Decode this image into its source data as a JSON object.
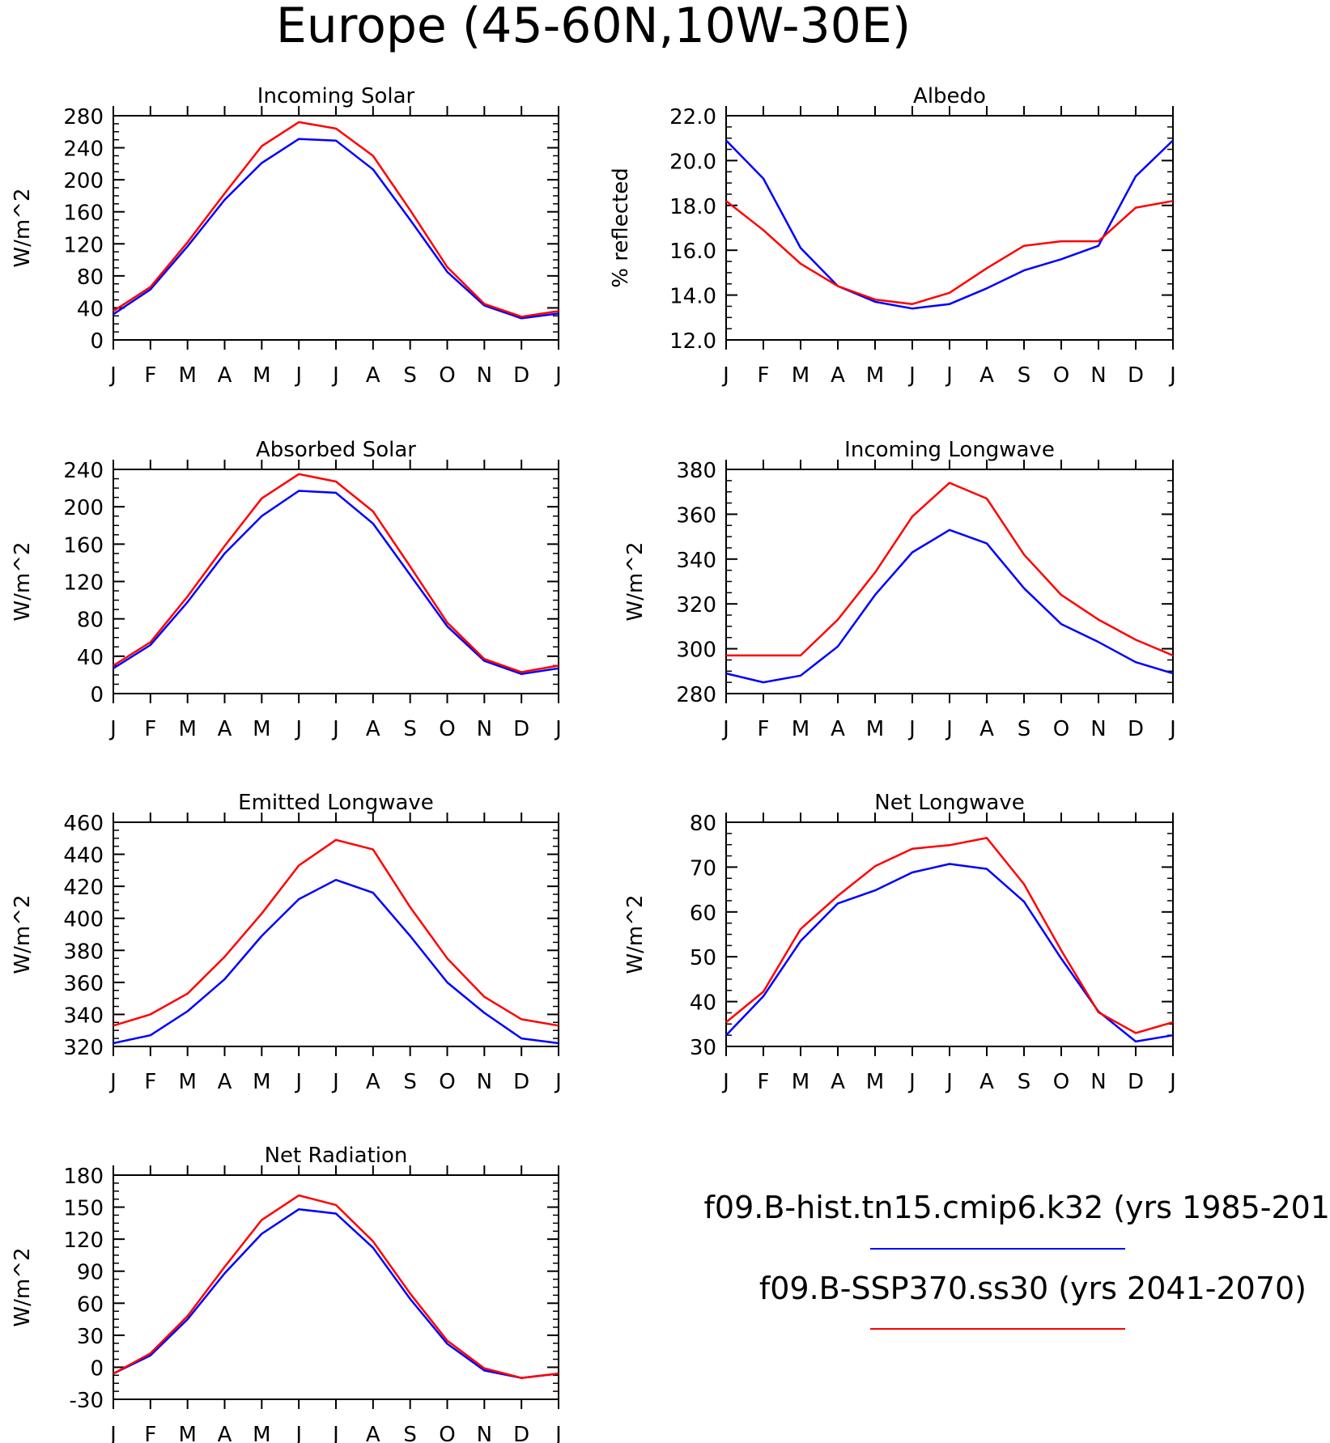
{
  "title": "Europe (45-60N,10W-30E)",
  "legend": [
    {
      "label": "f09.B-hist.tn15.cmip6.k32 (yrs 1985-201",
      "color": "#0000ff"
    },
    {
      "label": "f09.B-SSP370.ss30 (yrs 2041-2070)",
      "color": "#ff0000"
    }
  ],
  "chart_data": [
    {
      "type": "line",
      "title": "Incoming Solar",
      "ylabel": "W/m^2",
      "ylim": [
        0,
        280
      ],
      "yticks": [
        0,
        40,
        80,
        120,
        160,
        200,
        240,
        280
      ],
      "ytick_labels": [
        "0",
        "40",
        "80",
        "120",
        "160",
        "200",
        "240",
        "280"
      ],
      "categories": [
        "J",
        "F",
        "M",
        "A",
        "M",
        "J",
        "J",
        "A",
        "S",
        "O",
        "N",
        "D",
        "J"
      ],
      "series": [
        {
          "color": "#0000ff",
          "values": [
            32,
            63,
            117,
            175,
            221,
            251,
            249,
            213,
            150,
            85,
            43,
            27,
            33
          ]
        },
        {
          "color": "#ff0000",
          "values": [
            36,
            66,
            122,
            183,
            242,
            272,
            264,
            230,
            162,
            91,
            45,
            29,
            36
          ]
        }
      ]
    },
    {
      "type": "line",
      "title": "Albedo",
      "ylabel": "% reflected",
      "ylim": [
        12,
        22
      ],
      "yticks": [
        12,
        14,
        16,
        18,
        20,
        22
      ],
      "ytick_labels": [
        "12.0",
        "14.0",
        "16.0",
        "18.0",
        "20.0",
        "22.0"
      ],
      "categories": [
        "J",
        "F",
        "M",
        "A",
        "M",
        "J",
        "J",
        "A",
        "S",
        "O",
        "N",
        "D",
        "J"
      ],
      "series": [
        {
          "color": "#0000ff",
          "values": [
            20.9,
            19.2,
            16.1,
            14.4,
            13.7,
            13.4,
            13.6,
            14.3,
            15.1,
            15.6,
            16.2,
            19.3,
            20.9
          ]
        },
        {
          "color": "#ff0000",
          "values": [
            18.2,
            16.9,
            15.4,
            14.4,
            13.8,
            13.6,
            14.1,
            15.2,
            16.2,
            16.4,
            16.4,
            17.9,
            18.2
          ]
        }
      ]
    },
    {
      "type": "line",
      "title": "Absorbed Solar",
      "ylabel": "W/m^2",
      "ylim": [
        0,
        240
      ],
      "yticks": [
        0,
        40,
        80,
        120,
        160,
        200,
        240
      ],
      "ytick_labels": [
        "0",
        "40",
        "80",
        "120",
        "160",
        "200",
        "240"
      ],
      "categories": [
        "J",
        "F",
        "M",
        "A",
        "M",
        "J",
        "J",
        "A",
        "S",
        "O",
        "N",
        "D",
        "J"
      ],
      "series": [
        {
          "color": "#0000ff",
          "values": [
            27,
            52,
            98,
            150,
            190,
            217,
            215,
            182,
            127,
            72,
            35,
            21,
            27
          ]
        },
        {
          "color": "#ff0000",
          "values": [
            30,
            55,
            104,
            158,
            209,
            235,
            227,
            195,
            136,
            76,
            37,
            23,
            30
          ]
        }
      ]
    },
    {
      "type": "line",
      "title": "Incoming Longwave",
      "ylabel": "W/m^2",
      "ylim": [
        280,
        380
      ],
      "yticks": [
        280,
        300,
        320,
        340,
        360,
        380
      ],
      "ytick_labels": [
        "280",
        "300",
        "320",
        "340",
        "360",
        "380"
      ],
      "categories": [
        "J",
        "F",
        "M",
        "A",
        "M",
        "J",
        "J",
        "A",
        "S",
        "O",
        "N",
        "D",
        "J"
      ],
      "series": [
        {
          "color": "#0000ff",
          "values": [
            289,
            285,
            288,
            301,
            324,
            343,
            353,
            347,
            327,
            311,
            303,
            294,
            289
          ]
        },
        {
          "color": "#ff0000",
          "values": [
            297,
            297,
            297,
            313,
            334,
            359,
            374,
            367,
            342,
            324,
            313,
            304,
            297
          ]
        }
      ]
    },
    {
      "type": "line",
      "title": "Emitted Longwave",
      "ylabel": "W/m^2",
      "ylim": [
        320,
        460
      ],
      "yticks": [
        320,
        340,
        360,
        380,
        400,
        420,
        440,
        460
      ],
      "ytick_labels": [
        "320",
        "340",
        "360",
        "380",
        "400",
        "420",
        "440",
        "460"
      ],
      "categories": [
        "J",
        "F",
        "M",
        "A",
        "M",
        "J",
        "J",
        "A",
        "S",
        "O",
        "N",
        "D",
        "J"
      ],
      "series": [
        {
          "color": "#0000ff",
          "values": [
            322,
            327,
            342,
            362,
            389,
            412,
            424,
            416,
            389,
            360,
            341,
            325,
            322
          ]
        },
        {
          "color": "#ff0000",
          "values": [
            333,
            340,
            353,
            376,
            403,
            433,
            449,
            443,
            407,
            375,
            351,
            337,
            333
          ]
        }
      ]
    },
    {
      "type": "line",
      "title": "Net Longwave",
      "ylabel": "W/m^2",
      "ylim": [
        30,
        80
      ],
      "yticks": [
        30,
        40,
        50,
        60,
        70,
        80
      ],
      "ytick_labels": [
        "30",
        "40",
        "50",
        "60",
        "70",
        "80"
      ],
      "categories": [
        "J",
        "F",
        "M",
        "A",
        "M",
        "J",
        "J",
        "A",
        "S",
        "O",
        "N",
        "D",
        "J"
      ],
      "series": [
        {
          "color": "#0000ff",
          "values": [
            32.5,
            41.2,
            53.5,
            61.9,
            64.8,
            68.8,
            70.7,
            69.6,
            62.3,
            49.6,
            37.8,
            31.1,
            32.5
          ]
        },
        {
          "color": "#ff0000",
          "values": [
            35.4,
            42.2,
            56.2,
            63.6,
            70.2,
            74.1,
            74.9,
            76.5,
            66.2,
            51.4,
            37.6,
            33.0,
            35.4
          ]
        }
      ]
    },
    {
      "type": "line",
      "title": "Net Radiation",
      "ylabel": "W/m^2",
      "ylim": [
        -30,
        180
      ],
      "yticks": [
        -30,
        0,
        30,
        60,
        90,
        120,
        150,
        180
      ],
      "ytick_labels": [
        "-30",
        "0",
        "30",
        "60",
        "90",
        "120",
        "150",
        "180"
      ],
      "categories": [
        "J",
        "F",
        "M",
        "A",
        "M",
        "J",
        "J",
        "A",
        "S",
        "O",
        "N",
        "D",
        "J"
      ],
      "series": [
        {
          "color": "#0000ff",
          "values": [
            -6,
            11,
            45,
            88,
            125,
            148,
            144,
            112,
            64,
            22,
            -3,
            -10,
            -6
          ]
        },
        {
          "color": "#ff0000",
          "values": [
            -6,
            13,
            48,
            94,
            138,
            161,
            152,
            118,
            69,
            25,
            -1,
            -10,
            -6
          ]
        }
      ]
    }
  ]
}
